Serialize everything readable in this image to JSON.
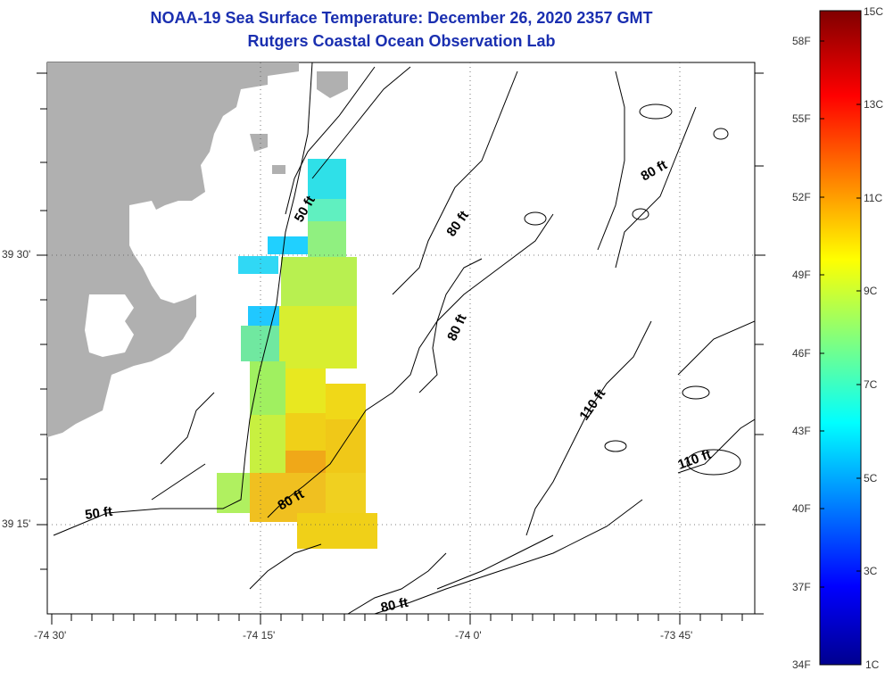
{
  "title": {
    "line1": "NOAA-19 Sea Surface Temperature:  December 26, 2020 2357 GMT",
    "line2": "Rutgers Coastal Ocean Observation Lab"
  },
  "map": {
    "lon_ticks": [
      "-74 30'",
      "-74 15'",
      "-74 0'",
      "-73 45'"
    ],
    "lat_ticks": [
      "39 30'",
      "39 15'"
    ],
    "contour_labels": [
      "50 ft",
      "50 ft",
      "80 ft",
      "80 ft",
      "80 ft",
      "80 ft",
      "80 ft",
      "110 ft",
      "110 ft"
    ],
    "colors": {
      "land": "#b0b0b0",
      "contour": "#000000",
      "grid": "#555555"
    }
  },
  "colorbar": {
    "celsius": [
      "15C",
      "13C",
      "11C",
      "9C",
      "7C",
      "5C",
      "3C",
      "1C"
    ],
    "fahrenheit": [
      "58F",
      "55F",
      "52F",
      "49F",
      "46F",
      "43F",
      "40F",
      "37F",
      "34F"
    ]
  }
}
